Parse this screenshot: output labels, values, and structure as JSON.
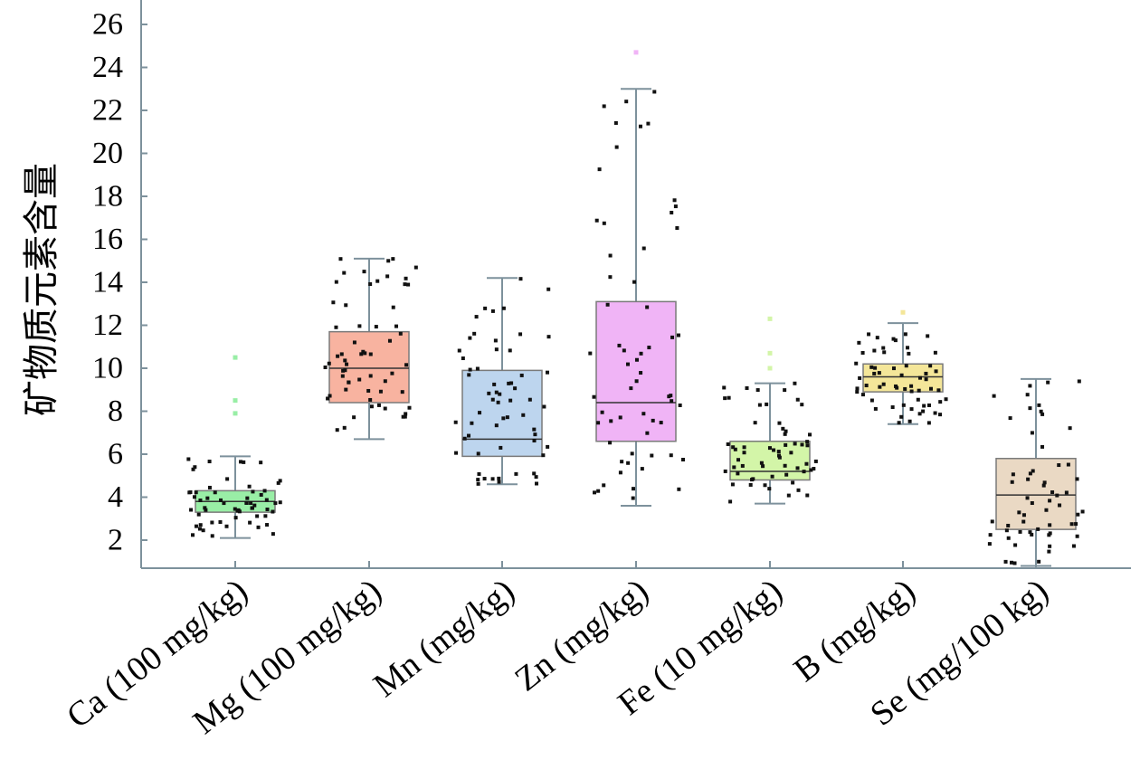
{
  "chart_data": {
    "type": "box",
    "title": "",
    "xlabel": "",
    "ylabel": "矿物质元素含量",
    "ylim": [
      0.7,
      27
    ],
    "yticks": [
      2,
      4,
      6,
      8,
      10,
      12,
      14,
      16,
      18,
      20,
      22,
      24,
      26
    ],
    "grid": false,
    "legend": "none",
    "categories": [
      "Ca (100 mg/kg)",
      "Mg (100 mg/kg)",
      "Mn (mg/kg)",
      "Zn (mg/kg)",
      "Fe (10 mg/kg)",
      "B (mg/kg)",
      "Se (mg/100 kg)"
    ],
    "series": [
      {
        "whisker_low": 2.1,
        "q1": 3.3,
        "median": 3.8,
        "q3": 4.3,
        "whisker_high": 5.9,
        "fill": "#99eea6",
        "outliers": [
          10.5,
          8.5,
          7.9
        ]
      },
      {
        "whisker_low": 6.7,
        "q1": 8.4,
        "median": 10.0,
        "q3": 11.7,
        "whisker_high": 15.1,
        "fill": "#f8b3a0",
        "outliers": []
      },
      {
        "whisker_low": 4.6,
        "q1": 5.9,
        "median": 6.7,
        "q3": 9.9,
        "whisker_high": 14.2,
        "fill": "#bdd5ee",
        "outliers": []
      },
      {
        "whisker_low": 3.6,
        "q1": 6.6,
        "median": 8.4,
        "q3": 13.1,
        "whisker_high": 23.0,
        "fill": "#f0b4f6",
        "outliers": [
          24.7
        ]
      },
      {
        "whisker_low": 3.7,
        "q1": 4.8,
        "median": 5.2,
        "q3": 6.6,
        "whisker_high": 9.3,
        "fill": "#d3f5a8",
        "outliers": [
          12.3,
          10.7,
          10.0
        ]
      },
      {
        "whisker_low": 7.4,
        "q1": 8.9,
        "median": 9.6,
        "q3": 10.2,
        "whisker_high": 12.1,
        "fill": "#f4e699",
        "outliers": [
          12.6
        ]
      },
      {
        "whisker_low": 0.8,
        "q1": 2.5,
        "median": 4.1,
        "q3": 5.8,
        "whisker_high": 9.5,
        "fill": "#ead9c4",
        "outliers": []
      }
    ]
  }
}
